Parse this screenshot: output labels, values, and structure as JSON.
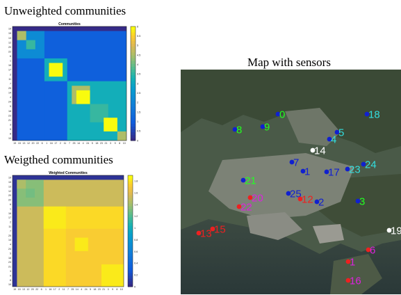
{
  "headings": {
    "unweighted": "Unweighted communities",
    "weighted": "Weigthed communities",
    "map": "Map with sensors"
  },
  "axis_order": [
    "19",
    "15",
    "13",
    "12",
    "20",
    "22",
    "6",
    "1",
    "16",
    "17",
    "2",
    "11",
    "7",
    "25",
    "14",
    "4",
    "24",
    "5",
    "18",
    "23",
    "21",
    "3",
    "9",
    "8",
    "10"
  ],
  "panels": [
    {
      "id": "uw",
      "title": "Communities",
      "colorbar_ticks": [
        "0",
        "0.5",
        "1",
        "1.5",
        "2",
        "2.5",
        "3",
        "3.5",
        "4",
        "4.5",
        "5",
        "5.5",
        "6"
      ],
      "vmax": 6,
      "background": 1,
      "outer_band": {
        "range": [
          0,
          7
        ],
        "value": 0
      },
      "blocks": [
        {
          "range": [
            1,
            7
          ],
          "value": 2.2
        },
        {
          "range": [
            1,
            3
          ],
          "value": 4.6
        },
        {
          "range": [
            3,
            5
          ],
          "value": 3.6
        },
        {
          "range": [
            7,
            25
          ],
          "value": 1
        },
        {
          "range": [
            7,
            12
          ],
          "value": 3.2
        },
        {
          "range": [
            8,
            11
          ],
          "value": 6
        },
        {
          "range": [
            12,
            25
          ],
          "value": 3.2
        },
        {
          "range": [
            13,
            17
          ],
          "value": 4.6
        },
        {
          "range": [
            14,
            17
          ],
          "value": 6
        },
        {
          "range": [
            17,
            21
          ],
          "value": 3.6
        },
        {
          "range": [
            20,
            23
          ],
          "value": 6
        },
        {
          "range": [
            23,
            25
          ],
          "value": 4.6
        }
      ]
    },
    {
      "id": "w",
      "title": "Weighted Communities",
      "colorbar_ticks": [
        "0",
        "0.2",
        "0.4",
        "0.6",
        "0.8",
        "1",
        "1.2",
        "1.4",
        "1.6",
        "1.8"
      ],
      "vmax": 1.9,
      "background": 1.55,
      "outer_band": {
        "range": [
          0,
          7
        ],
        "value": 0.05
      },
      "blocks": [
        {
          "range": [
            1,
            7
          ],
          "value": 1.35
        },
        {
          "range": [
            1,
            3
          ],
          "value": 1.45
        },
        {
          "range": [
            3,
            5
          ],
          "value": 1.3
        },
        {
          "range": [
            7,
            25
          ],
          "value": 1.8
        },
        {
          "range": [
            7,
            12
          ],
          "value": 1.85
        },
        {
          "range": [
            12,
            25
          ],
          "value": 1.75
        },
        {
          "range": [
            14,
            17
          ],
          "value": 1.85
        },
        {
          "range": [
            20,
            25
          ],
          "value": 1.85
        }
      ]
    }
  ],
  "sensors": [
    {
      "id": "0",
      "color": "#22ff22",
      "marker": "#1020d0"
    },
    {
      "id": "18",
      "color": "#33dddd",
      "marker": "#1020d0"
    },
    {
      "id": "8",
      "color": "#22ff22",
      "marker": "#1020d0"
    },
    {
      "id": "9",
      "color": "#22ff22",
      "marker": "#1020d0"
    },
    {
      "id": "5",
      "color": "#33dddd",
      "marker": "#1020d0"
    },
    {
      "id": "4",
      "color": "#33dddd",
      "marker": "#1020d0"
    },
    {
      "id": "14",
      "color": "#ffffff",
      "marker": "#ffffff"
    },
    {
      "id": "7",
      "color": "#1020d0",
      "marker": "#1020d0"
    },
    {
      "id": "1",
      "color": "#1020d0",
      "marker": "#1020d0"
    },
    {
      "id": "17",
      "color": "#1020d0",
      "marker": "#1020d0"
    },
    {
      "id": "23",
      "color": "#33dddd",
      "marker": "#1020d0"
    },
    {
      "id": "24",
      "color": "#33dddd",
      "marker": "#1020d0"
    },
    {
      "id": "21",
      "color": "#22ff22",
      "marker": "#1020d0"
    },
    {
      "id": "25",
      "color": "#1020d0",
      "marker": "#1020d0"
    },
    {
      "id": "12",
      "color": "#ee2020",
      "marker": "#ee2020"
    },
    {
      "id": "2",
      "color": "#1020d0",
      "marker": "#1020d0"
    },
    {
      "id": "3",
      "color": "#22ff22",
      "marker": "#1020d0"
    },
    {
      "id": "20",
      "color": "#dd22dd",
      "marker": "#ee2020"
    },
    {
      "id": "22",
      "color": "#dd22dd",
      "marker": "#ee2020"
    },
    {
      "id": "13",
      "color": "#ee2020",
      "marker": "#ee2020"
    },
    {
      "id": "15",
      "color": "#ee2020",
      "marker": "#ee2020"
    },
    {
      "id": "19",
      "color": "#ffffff",
      "marker": "#ffffff"
    },
    {
      "id": "6",
      "color": "#dd22dd",
      "marker": "#ee2020"
    },
    {
      "id": "1",
      "color": "#dd22dd",
      "marker": "#ee2020"
    },
    {
      "id": "16",
      "color": "#dd22dd",
      "marker": "#ee2020"
    }
  ]
}
